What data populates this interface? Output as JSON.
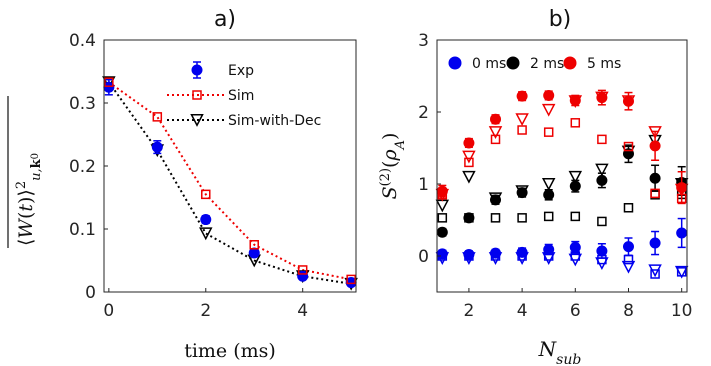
{
  "chart_data": [
    {
      "panel_label": "a)",
      "type": "line",
      "xlabel": "time (ms)",
      "ylabel": "⟨W(t)⟩²_{u,k₀}",
      "xlim": [
        -0.1,
        5.1
      ],
      "ylim": [
        0,
        0.4
      ],
      "xticks": [
        "0",
        "2",
        "4"
      ],
      "yticks": [
        "0",
        "0.1",
        "0.2",
        "0.3",
        "0.4"
      ],
      "legend_position": "top-right",
      "series": [
        {
          "name": "Exp",
          "color": "#0000ee",
          "marker": "filled-circle",
          "x": [
            0,
            1,
            2,
            3,
            4,
            5
          ],
          "y": [
            0.325,
            0.23,
            0.115,
            0.062,
            0.025,
            0.015
          ],
          "err": [
            0.012,
            0.01,
            0.006,
            0.005,
            0.004,
            0.004
          ]
        },
        {
          "name": "Sim",
          "color": "#ee0000",
          "marker": "open-square",
          "line": "dotted",
          "x": [
            0,
            1,
            2,
            3,
            4,
            5
          ],
          "y": [
            0.333,
            0.278,
            0.155,
            0.075,
            0.035,
            0.02
          ]
        },
        {
          "name": "Sim-with-Dec",
          "color": "#000000",
          "marker": "open-triangle-down",
          "line": "dotted",
          "x": [
            0,
            1,
            2,
            3,
            4,
            5
          ],
          "y": [
            0.333,
            0.225,
            0.093,
            0.05,
            0.025,
            0.013
          ]
        }
      ]
    },
    {
      "panel_label": "b)",
      "type": "scatter",
      "xlabel": "N_sub",
      "ylabel": "S⁽²⁾(ρ_A)",
      "xlim": [
        0.8,
        10.2
      ],
      "ylim": [
        -0.5,
        3
      ],
      "xticks": [
        "2",
        "4",
        "6",
        "8",
        "10"
      ],
      "yticks": [
        "0",
        "1",
        "2",
        "3"
      ],
      "legend_position": "top",
      "legend": [
        {
          "label": "0 ms",
          "color": "#0000ee"
        },
        {
          "label": "2 ms",
          "color": "#000000"
        },
        {
          "label": "5 ms",
          "color": "#ee0000"
        }
      ],
      "series": [
        {
          "group": "0 ms",
          "color": "#0000ee",
          "kind": "exp",
          "x": [
            1,
            2,
            3,
            4,
            5,
            6,
            7,
            8,
            9,
            10
          ],
          "y": [
            0.03,
            0.02,
            0.04,
            0.05,
            0.09,
            0.12,
            0.07,
            0.13,
            0.18,
            0.32
          ],
          "err": [
            0.05,
            0.05,
            0.05,
            0.06,
            0.07,
            0.08,
            0.1,
            0.12,
            0.16,
            0.2
          ]
        },
        {
          "group": "0 ms",
          "color": "#0000ee",
          "kind": "sim",
          "x": [
            1,
            2,
            3,
            4,
            5,
            6,
            7,
            8,
            9,
            10
          ],
          "y": [
            0,
            0,
            0,
            0,
            0,
            0,
            -0.05,
            -0.05,
            -0.25,
            -0.22
          ]
        },
        {
          "group": "0 ms",
          "color": "#0000ee",
          "kind": "sim-with-dec",
          "x": [
            1,
            2,
            3,
            4,
            5,
            6,
            7,
            8,
            9,
            10
          ],
          "y": [
            -0.03,
            -0.03,
            -0.03,
            -0.03,
            -0.03,
            -0.05,
            -0.1,
            -0.15,
            -0.2,
            -0.22
          ]
        },
        {
          "group": "2 ms",
          "color": "#000000",
          "kind": "exp",
          "x": [
            1,
            2,
            3,
            4,
            5,
            6,
            7,
            8,
            9,
            10
          ],
          "y": [
            0.33,
            0.53,
            0.78,
            0.88,
            0.85,
            0.97,
            1.05,
            1.42,
            1.08,
            1.02
          ],
          "err": [
            0.05,
            0.05,
            0.06,
            0.06,
            0.07,
            0.08,
            0.1,
            0.12,
            0.18,
            0.22
          ]
        },
        {
          "group": "2 ms",
          "color": "#000000",
          "kind": "sim",
          "x": [
            1,
            2,
            3,
            4,
            5,
            6,
            7,
            8,
            9,
            10
          ],
          "y": [
            0.53,
            0.53,
            0.53,
            0.53,
            0.55,
            0.55,
            0.48,
            0.67,
            0.85,
            0.9
          ]
        },
        {
          "group": "2 ms",
          "color": "#000000",
          "kind": "sim-with-dec",
          "x": [
            1,
            2,
            3,
            4,
            5,
            6,
            7,
            8,
            9,
            10
          ],
          "y": [
            0.7,
            1.1,
            0.8,
            0.9,
            1.0,
            1.1,
            1.2,
            1.45,
            1.6,
            1.0
          ]
        },
        {
          "group": "5 ms",
          "color": "#ee0000",
          "kind": "exp",
          "x": [
            1,
            2,
            3,
            4,
            5,
            6,
            7,
            8,
            9,
            10
          ],
          "y": [
            0.9,
            1.57,
            1.9,
            2.22,
            2.23,
            2.16,
            2.2,
            2.15,
            1.53,
            0.95
          ],
          "err": [
            0.08,
            0.06,
            0.06,
            0.06,
            0.06,
            0.07,
            0.1,
            0.12,
            0.2,
            0.22
          ]
        },
        {
          "group": "5 ms",
          "color": "#ee0000",
          "kind": "sim",
          "x": [
            1,
            2,
            3,
            4,
            5,
            6,
            7,
            8,
            9,
            10
          ],
          "y": [
            0.85,
            1.3,
            1.62,
            1.75,
            1.72,
            1.85,
            1.62,
            1.52,
            0.87,
            0.8
          ]
        },
        {
          "group": "5 ms",
          "color": "#ee0000",
          "kind": "sim-with-dec",
          "x": [
            1,
            2,
            3,
            4,
            5,
            6,
            7,
            8,
            9,
            10
          ],
          "y": [
            0.85,
            1.38,
            1.72,
            1.9,
            2.03,
            2.15,
            2.2,
            2.15,
            1.72,
            0.92
          ]
        }
      ]
    }
  ]
}
